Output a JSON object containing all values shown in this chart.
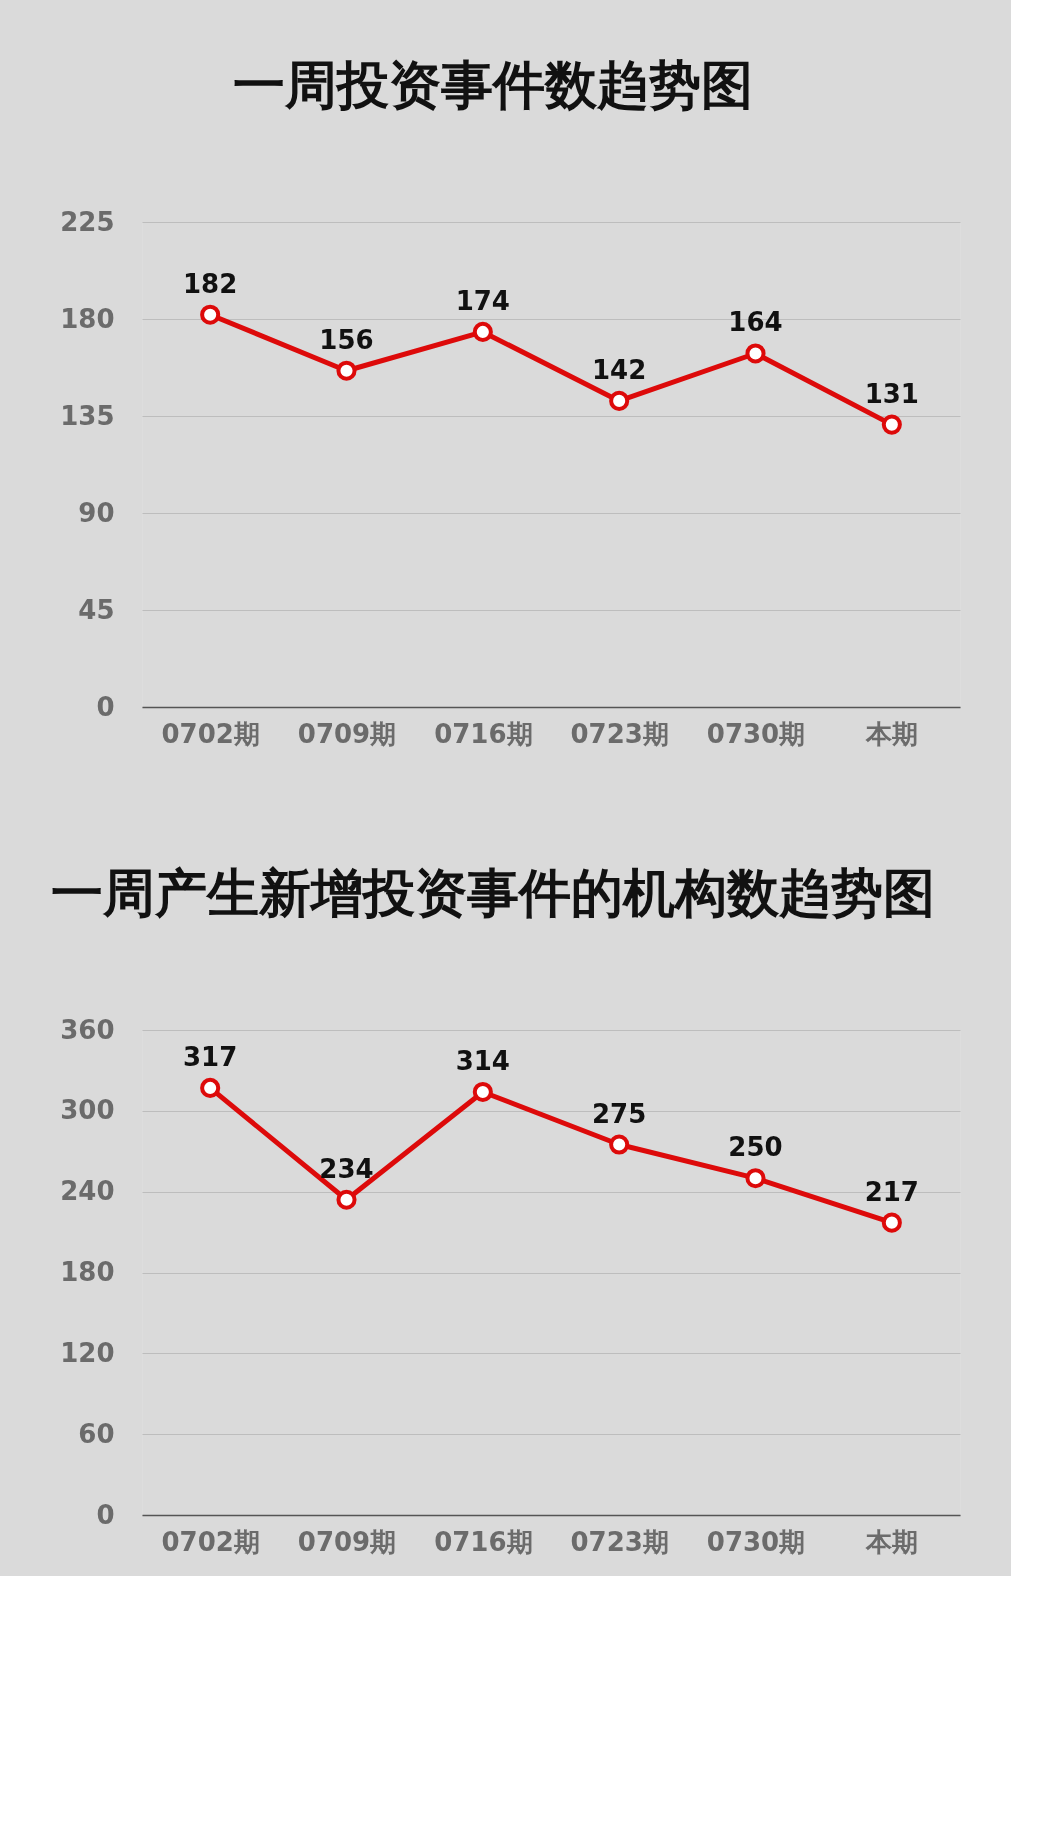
{
  "chart_data": [
    {
      "type": "line",
      "title": "一周投资事件数趋势图",
      "categories": [
        "0702期",
        "0709期",
        "0716期",
        "0723期",
        "0730期",
        "本期"
      ],
      "values": [
        182,
        156,
        174,
        142,
        164,
        131
      ],
      "color": "#dd0a0a",
      "ylim": [
        0,
        225
      ],
      "yticks": [
        0,
        45,
        90,
        135,
        180,
        225
      ],
      "grid": "y",
      "marker": "circle",
      "data_labels": true
    },
    {
      "type": "line",
      "title": "一周产生新增投资事件的机构数趋势图",
      "categories": [
        "0702期",
        "0709期",
        "0716期",
        "0723期",
        "0730期",
        "本期"
      ],
      "values": [
        317,
        234,
        314,
        275,
        250,
        217
      ],
      "color": "#dd0a0a",
      "ylim": [
        0,
        360
      ],
      "yticks": [
        0,
        60,
        120,
        180,
        240,
        300,
        360
      ],
      "grid": "y",
      "marker": "circle",
      "data_labels": true
    }
  ]
}
